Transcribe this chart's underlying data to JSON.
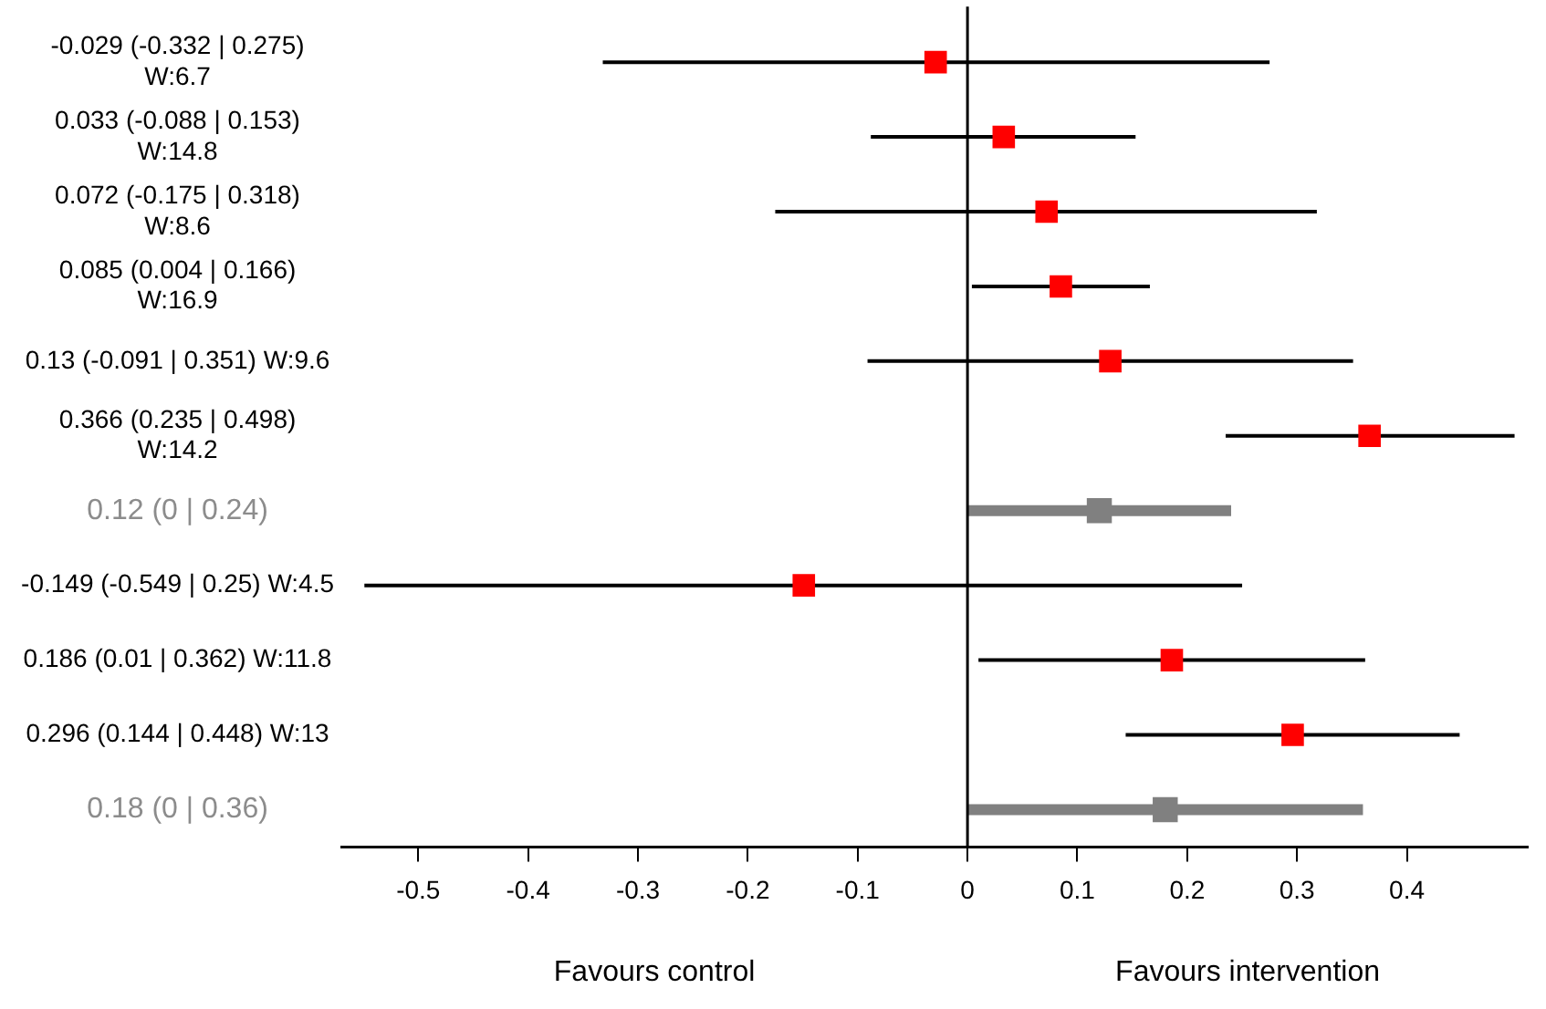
{
  "chart_data": {
    "type": "scatter",
    "orientation": "horizontal",
    "categories": [
      "-0.029 (-0.332 | 0.275) W:6.7",
      "0.033 (-0.088 | 0.153) W:14.8",
      "0.072 (-0.175 | 0.318) W:8.6",
      "0.085 (0.004 | 0.166) W:16.9",
      "0.13 (-0.091 | 0.351) W:9.6",
      "0.366 (0.235 | 0.498) W:14.2",
      "0.12 (0 | 0.24)",
      "-0.149 (-0.549 | 0.25) W:4.5",
      "0.186 (0.01 | 0.362) W:11.8",
      "0.296 (0.144 | 0.448) W:13",
      "0.18 (0 | 0.36)"
    ],
    "series": [
      {
        "color": "#ff0000",
        "marker": "square",
        "values": [
          -0.029,
          0.033,
          0.072,
          0.085,
          0.13,
          0.366,
          null,
          -0.149,
          0.186,
          0.296,
          null
        ],
        "errors": [
          [
            -0.332,
            0.275
          ],
          [
            -0.088,
            0.153
          ],
          [
            -0.175,
            0.318
          ],
          [
            0.004,
            0.166
          ],
          [
            -0.091,
            0.351
          ],
          [
            0.235,
            0.498
          ],
          null,
          [
            -0.549,
            0.25
          ],
          [
            0.01,
            0.362
          ],
          [
            0.144,
            0.448
          ],
          null
        ]
      },
      {
        "color": "#808080",
        "marker": "square",
        "values": [
          null,
          null,
          null,
          null,
          null,
          null,
          0.12,
          null,
          null,
          null,
          0.18
        ],
        "errors": [
          null,
          null,
          null,
          null,
          null,
          null,
          [
            0,
            0.24
          ],
          null,
          null,
          null,
          [
            0,
            0.36
          ]
        ]
      }
    ],
    "xlim": [
      -0.57,
      0.51
    ],
    "xticks": [
      -0.5,
      -0.4,
      -0.3,
      -0.2,
      -0.1,
      0,
      0.1,
      0.2,
      0.3,
      0.4
    ],
    "ref_lines": [
      {
        "axis": "x",
        "value": 0,
        "color": "#000000"
      }
    ],
    "annotations": [
      "Favours control",
      "Favours intervention"
    ],
    "grid": false,
    "legend": false
  }
}
